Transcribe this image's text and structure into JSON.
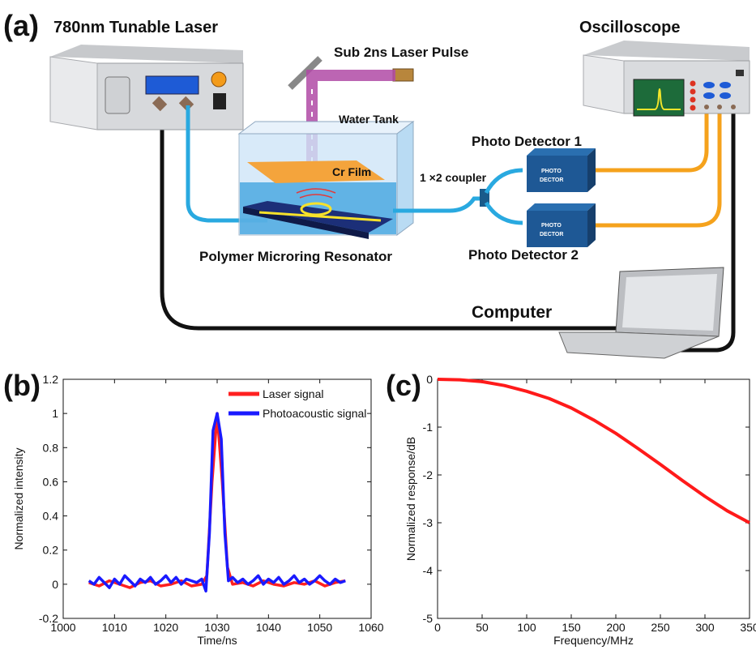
{
  "panel_a": {
    "letter": "(a)",
    "laser_label": "780nm Tunable Laser",
    "scope_label": "Oscilloscope",
    "pulse_label": "Sub 2ns Laser Pulse",
    "tank_label": "Water Tank",
    "film_label": "Cr Film",
    "coupler_label": "1 ×2 coupler",
    "pd1_label": "Photo Detector 1",
    "pd2_label": "Photo Detector 2",
    "pd_box_line1": "PHOTO",
    "pd_box_line2": "DECTOR",
    "resonator_label": "Polymer Microring Resonator",
    "computer_label": "Computer",
    "colors": {
      "fiber_blue": "#29a9e0",
      "cable_orange": "#f5a21c",
      "beam_purple": "#b04aa6",
      "film_orange": "#f4a43c"
    }
  },
  "chart_data": [
    {
      "panel": "(b)",
      "type": "line",
      "xlabel": "Time/ns",
      "ylabel": "Normalized intensity",
      "xlim": [
        1000,
        1060
      ],
      "ylim": [
        -0.2,
        1.2
      ],
      "xticks": [
        "1000",
        "1010",
        "1020",
        "1030",
        "1040",
        "1050",
        "1060"
      ],
      "yticks": [
        "-0.2",
        "0",
        "0.2",
        "0.4",
        "0.6",
        "0.8",
        "1",
        "1.2"
      ],
      "legend_position": "top-right",
      "series": [
        {
          "name": "Laser signal",
          "color": "#ff2020",
          "x": [
            1005,
            1007,
            1009,
            1011,
            1013,
            1015,
            1017,
            1019,
            1021,
            1023,
            1025,
            1027,
            1028,
            1029,
            1030,
            1031,
            1032,
            1033,
            1035,
            1037,
            1039,
            1041,
            1043,
            1045,
            1047,
            1049,
            1051,
            1053,
            1055
          ],
          "y": [
            0.01,
            -0.01,
            0.02,
            0.0,
            -0.02,
            0.01,
            0.02,
            -0.01,
            0.0,
            0.02,
            -0.01,
            0.0,
            0.05,
            0.6,
            1.0,
            0.6,
            0.1,
            0.0,
            0.01,
            -0.01,
            0.02,
            0.0,
            -0.01,
            0.01,
            0.0,
            0.02,
            -0.01,
            0.01,
            0.02
          ]
        },
        {
          "name": "Photoacoustic signal",
          "color": "#1a1aff",
          "x": [
            1005,
            1006,
            1007,
            1008,
            1009,
            1010,
            1011,
            1012,
            1013,
            1014,
            1015,
            1016,
            1017,
            1018,
            1019,
            1020,
            1021,
            1022,
            1023,
            1024,
            1025,
            1026,
            1027,
            1027.8,
            1028.5,
            1029.2,
            1030,
            1030.8,
            1031.5,
            1032.2,
            1033,
            1034,
            1035,
            1036,
            1037,
            1038,
            1039,
            1040,
            1041,
            1042,
            1043,
            1044,
            1045,
            1046,
            1047,
            1048,
            1049,
            1050,
            1051,
            1052,
            1053,
            1054,
            1055
          ],
          "y": [
            0.02,
            0.0,
            0.04,
            0.01,
            -0.02,
            0.03,
            0.0,
            0.05,
            0.02,
            -0.01,
            0.03,
            0.01,
            0.04,
            0.0,
            0.02,
            0.05,
            0.01,
            0.04,
            0.0,
            0.03,
            0.02,
            0.01,
            0.03,
            -0.04,
            0.3,
            0.9,
            1.0,
            0.85,
            0.3,
            0.02,
            0.04,
            0.01,
            0.03,
            0.0,
            0.02,
            0.05,
            0.0,
            0.03,
            0.01,
            0.04,
            0.0,
            0.02,
            0.05,
            0.01,
            0.03,
            0.0,
            0.02,
            0.05,
            0.02,
            0.0,
            0.03,
            0.01,
            0.02
          ]
        }
      ]
    },
    {
      "panel": "(c)",
      "type": "line",
      "xlabel": "Frequency/MHz",
      "ylabel": "Normalized response/dB",
      "xlim": [
        0,
        350
      ],
      "ylim": [
        -5,
        0
      ],
      "xticks": [
        "0",
        "50",
        "100",
        "150",
        "200",
        "250",
        "300",
        "350"
      ],
      "yticks": [
        "0",
        "-1",
        "-2",
        "-3",
        "-4",
        "-5"
      ],
      "series": [
        {
          "color": "#ff1a1a",
          "x": [
            0,
            25,
            50,
            75,
            100,
            125,
            150,
            175,
            200,
            225,
            250,
            275,
            300,
            325,
            350
          ],
          "y": [
            0,
            -0.01,
            -0.05,
            -0.13,
            -0.25,
            -0.4,
            -0.6,
            -0.85,
            -1.13,
            -1.45,
            -1.78,
            -2.12,
            -2.45,
            -2.75,
            -3.0
          ]
        }
      ]
    }
  ]
}
